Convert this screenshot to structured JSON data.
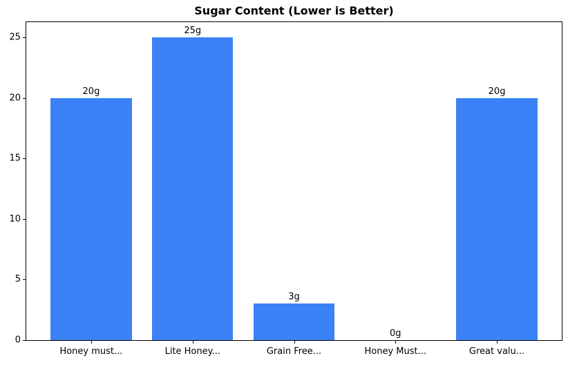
{
  "chart_data": {
    "type": "bar",
    "title": "Sugar Content (Lower is Better)",
    "categories": [
      "Honey must...",
      "Lite Honey...",
      "Grain Free...",
      "Honey Must...",
      "Great valu..."
    ],
    "values": [
      20,
      25,
      3,
      0,
      20
    ],
    "bar_labels": [
      "20g",
      "25g",
      "3g",
      "0g",
      "20g"
    ],
    "yticks": [
      0,
      5,
      10,
      15,
      20,
      25
    ],
    "ylim": [
      0,
      26.25
    ],
    "xlabel": "",
    "ylabel": "",
    "grid": false,
    "legend": null,
    "bar_color": "#3b82f6",
    "axis_color": "#000000",
    "background_color": "#ffffff"
  }
}
